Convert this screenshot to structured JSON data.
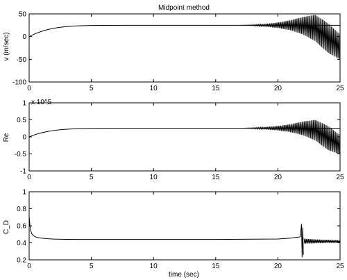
{
  "chart_data": [
    {
      "type": "line",
      "title": "Midpoint method",
      "xlabel": "",
      "ylabel": "v (m/sec)",
      "xlim": [
        0,
        25
      ],
      "ylim": [
        -100,
        50
      ],
      "xticks": [
        0,
        5,
        10,
        15,
        20,
        25
      ],
      "yticks": [
        -100,
        -50,
        0,
        50
      ],
      "scale_label": "",
      "grid": false,
      "legend": "none",
      "series": [
        {
          "line": {
            "x": [
              0,
              0.5,
              1,
              1.5,
              2,
              2.5,
              3,
              3.5,
              4,
              5,
              6,
              8,
              10,
              12,
              15,
              17,
              18,
              19,
              20,
              21,
              22,
              23,
              24,
              25
            ],
            "y": [
              0,
              6.5,
              11.5,
              15.5,
              18.5,
              20.5,
              22,
              23,
              23.7,
              24.5,
              24.8,
              25,
              25,
              25,
              25,
              25,
              25,
              25,
              25,
              25,
              25,
              25,
              25,
              25
            ]
          },
          "upper_envelope": {
            "x": [
              17,
              18,
              19,
              20,
              21,
              22,
              23,
              24,
              25
            ],
            "y": [
              25,
              26,
              28,
              31,
              36,
              43,
              48,
              30,
              5
            ]
          },
          "lower_envelope": {
            "x": [
              17,
              18,
              19,
              20,
              21,
              22,
              23,
              24,
              25
            ],
            "y": [
              25,
              24,
              22,
              19,
              14,
              5,
              -10,
              -35,
              -50
            ]
          }
        }
      ]
    },
    {
      "type": "line",
      "title": "",
      "xlabel": "",
      "ylabel": "Re",
      "xlim": [
        0,
        25
      ],
      "ylim": [
        -1,
        1
      ],
      "xticks": [
        0,
        5,
        10,
        15,
        20,
        25
      ],
      "yticks": [
        -1,
        -0.5,
        0,
        0.5,
        1
      ],
      "scale_label": "x 10^5",
      "grid": false,
      "legend": "none",
      "series": [
        {
          "line": {
            "x": [
              0,
              0.5,
              1,
              1.5,
              2,
              2.5,
              3,
              3.5,
              4,
              5,
              6,
              8,
              10,
              12,
              15,
              17,
              18,
              19,
              20,
              21,
              22,
              23,
              24,
              25
            ],
            "y": [
              0,
              0.07,
              0.12,
              0.16,
              0.19,
              0.21,
              0.225,
              0.235,
              0.243,
              0.25,
              0.253,
              0.255,
              0.255,
              0.255,
              0.255,
              0.255,
              0.255,
              0.255,
              0.255,
              0.255,
              0.255,
              0.255,
              0.255,
              0.255
            ]
          },
          "upper_envelope": {
            "x": [
              17,
              18,
              19,
              20,
              21,
              22,
              23,
              24,
              25
            ],
            "y": [
              0.255,
              0.27,
              0.29,
              0.32,
              0.37,
              0.45,
              0.5,
              0.33,
              0.05
            ]
          },
          "lower_envelope": {
            "x": [
              17,
              18,
              19,
              20,
              21,
              22,
              23,
              24,
              25
            ],
            "y": [
              0.255,
              0.24,
              0.22,
              0.19,
              0.14,
              0.05,
              -0.1,
              -0.38,
              -0.52
            ]
          }
        }
      ]
    },
    {
      "type": "line",
      "title": "",
      "xlabel": "time (sec)",
      "ylabel": "C_D",
      "xlim": [
        0,
        25
      ],
      "ylim": [
        0.2,
        1
      ],
      "xticks": [
        0,
        5,
        10,
        15,
        20,
        25
      ],
      "yticks": [
        0.2,
        0.4,
        0.6,
        0.8,
        1
      ],
      "scale_label": "",
      "grid": false,
      "legend": "none",
      "series": [
        {
          "line": {
            "x": [
              0,
              0.05,
              0.1,
              0.2,
              0.3,
              0.5,
              0.75,
              1,
              1.5,
              2,
              3,
              4,
              5,
              8,
              10,
              15,
              20,
              21,
              21.8
            ],
            "y": [
              0.72,
              0.62,
              0.56,
              0.51,
              0.49,
              0.47,
              0.46,
              0.455,
              0.448,
              0.444,
              0.441,
              0.44,
              0.44,
              0.44,
              0.44,
              0.44,
              0.445,
              0.455,
              0.47
            ]
          },
          "spikes": {
            "x": [
              21.9,
              21.95,
              22.0,
              22.05
            ],
            "y": [
              0.62,
              0.23,
              0.58,
              0.26
            ]
          },
          "band_after": {
            "x": [
              22.1,
              23,
              24,
              25
            ],
            "upper": [
              0.45,
              0.44,
              0.435,
              0.43
            ],
            "lower": [
              0.39,
              0.395,
              0.4,
              0.4
            ]
          }
        }
      ]
    }
  ]
}
